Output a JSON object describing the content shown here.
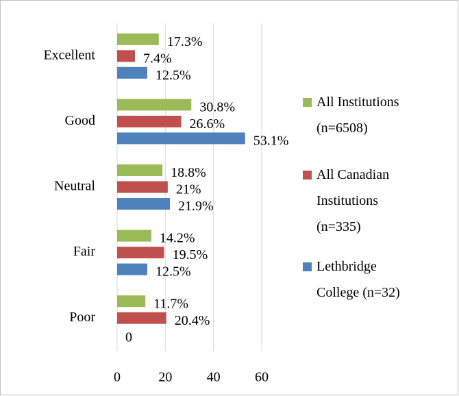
{
  "chart_data": {
    "type": "hbar",
    "categories": [
      "Excellent",
      "Good",
      "Neutral",
      "Fair",
      "Poor"
    ],
    "series": [
      {
        "name": "All Institutions (n=6508)",
        "color": "#9bbb59",
        "values": [
          17.3,
          30.8,
          18.8,
          14.2,
          11.7
        ],
        "value_labels": [
          "17.3%",
          "30.8%",
          "18.8%",
          "14.2%",
          "11.7%"
        ]
      },
      {
        "name": "All Canadian Institutions (n=335)",
        "color": "#c0504d",
        "values": [
          7.4,
          26.6,
          21,
          19.5,
          20.4
        ],
        "value_labels": [
          "7.4%",
          "26.6%",
          "21%",
          "19.5%",
          "20.4%"
        ]
      },
      {
        "name": "Lethbridge College (n=32)",
        "color": "#4f81bd",
        "values": [
          12.5,
          53.1,
          21.9,
          12.5,
          0
        ],
        "value_labels": [
          "12.5%",
          "53.1%",
          "21.9%",
          "12.5%",
          "0"
        ]
      }
    ],
    "xlim": [
      0,
      60
    ],
    "xticks": [
      0,
      20,
      40,
      60
    ],
    "grid": true,
    "legend": "right"
  }
}
